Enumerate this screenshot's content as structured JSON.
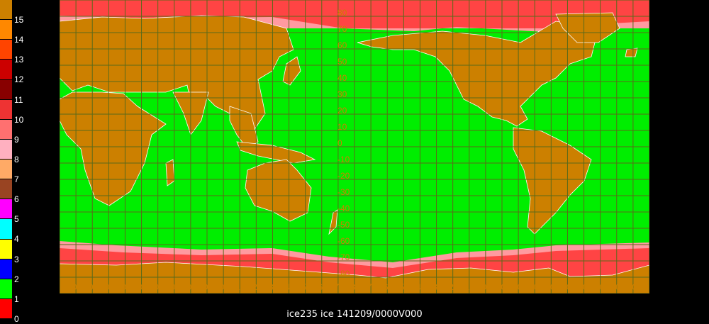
{
  "caption": "ice235 ice 141209/0000V000",
  "legend": [
    {
      "label": "15",
      "color": "#cc8000"
    },
    {
      "label": "14",
      "color": "#ff8800"
    },
    {
      "label": "13",
      "color": "#ff4400"
    },
    {
      "label": "12",
      "color": "#cc0000"
    },
    {
      "label": "11",
      "color": "#880000"
    },
    {
      "label": "10",
      "color": "#ee3333"
    },
    {
      "label": "9",
      "color": "#ff7070"
    },
    {
      "label": "8",
      "color": "#ffb0c0"
    },
    {
      "label": "7",
      "color": "#ffaa66"
    },
    {
      "label": "6",
      "color": "#994422"
    },
    {
      "label": "5",
      "color": "#ff00ff"
    },
    {
      "label": "4",
      "color": "#00ffff"
    },
    {
      "label": "3",
      "color": "#ffff00"
    },
    {
      "label": "2",
      "color": "#0000ff"
    },
    {
      "label": "1",
      "color": "#00ff00"
    },
    {
      "label": "0",
      "color": "#ff0000"
    }
  ],
  "map": {
    "colors": {
      "ocean": "#00ee00",
      "land": "#cc8000",
      "ice": "#ff4444",
      "ice_edge": "#ff9aa0",
      "grid": "#5a6a1a",
      "coast": "#ffffff",
      "background": "#000000"
    },
    "lat_labels": [
      "80",
      "70",
      "60",
      "50",
      "40",
      "30",
      "20",
      "10",
      "0",
      "-10",
      "-20",
      "-30",
      "-40",
      "-50",
      "-60",
      "-70",
      "-80"
    ],
    "lon_labels": [
      "10",
      "20",
      "30",
      "40",
      "50",
      "60",
      "70",
      "80",
      "90",
      "100",
      "110",
      "120",
      "130",
      "140",
      "150",
      "160",
      "170",
      "180",
      "170",
      "160",
      "150",
      "140",
      "130",
      "120",
      "110",
      "100",
      "-90",
      "-80",
      "-70",
      "-60",
      "-50",
      "-40",
      "-30",
      "-20",
      "-10"
    ]
  }
}
